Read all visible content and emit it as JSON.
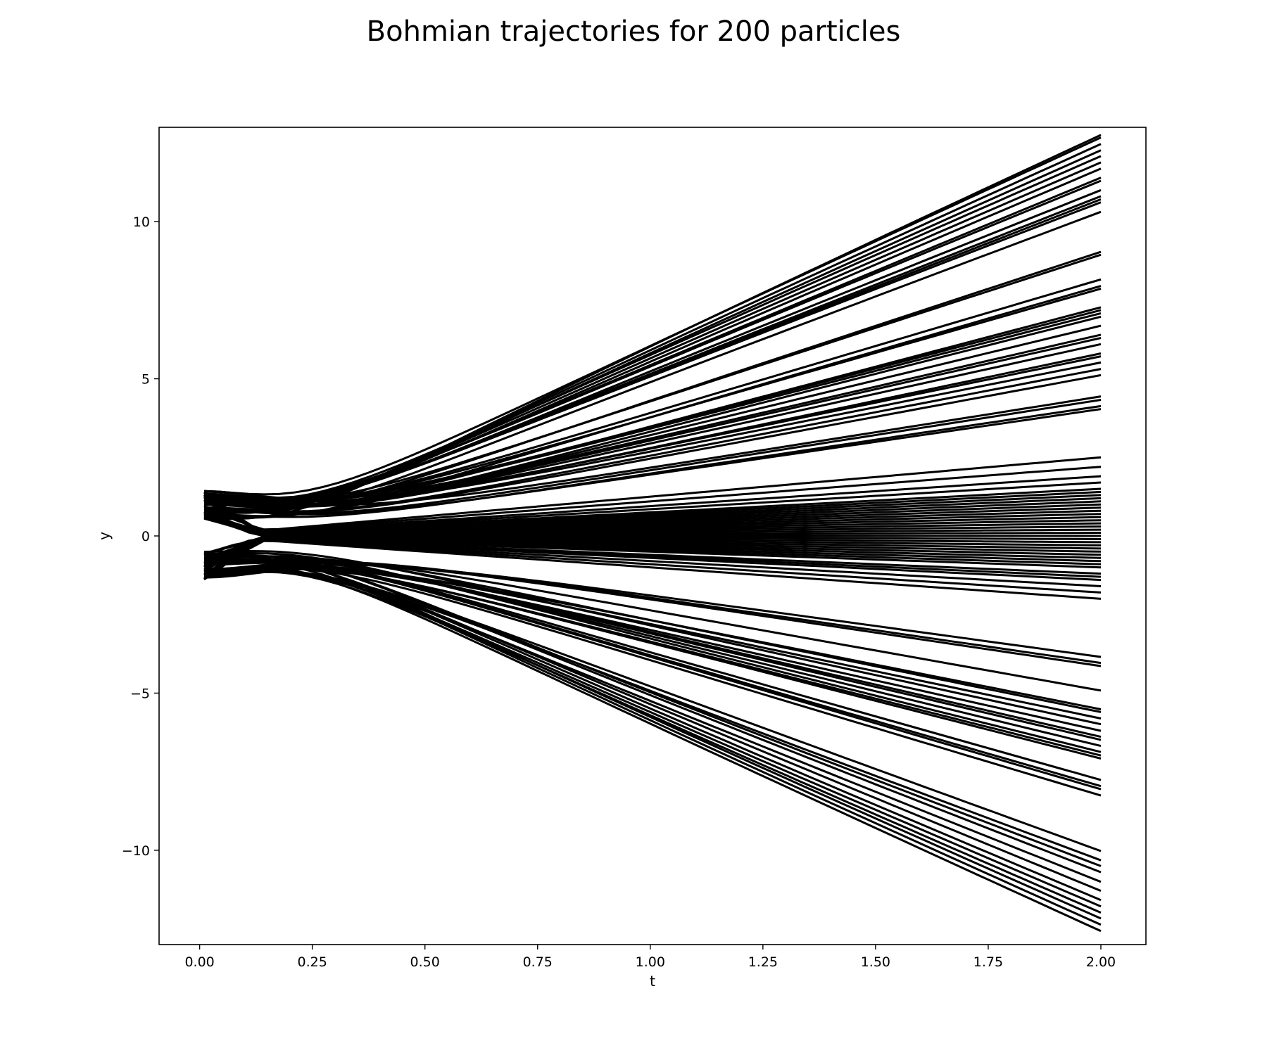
{
  "chart_data": {
    "type": "line",
    "title": "Bohmian trajectories for 200 particles",
    "xlabel": "t",
    "ylabel": "y",
    "xlim": [
      -0.09,
      2.1
    ],
    "ylim": [
      -13,
      13
    ],
    "x_ticks": [
      0.0,
      0.25,
      0.5,
      0.75,
      1.0,
      1.25,
      1.5,
      1.75,
      2.0
    ],
    "x_tick_labels": [
      "0.00",
      "0.25",
      "0.50",
      "0.75",
      "1.00",
      "1.25",
      "1.50",
      "1.75",
      "2.00"
    ],
    "y_ticks": [
      -10,
      -5,
      0,
      5,
      10
    ],
    "y_tick_labels": [
      "−10",
      "−5",
      "0",
      "5",
      "10"
    ],
    "grid": false,
    "legend": "none",
    "line_color": "#000000",
    "t_range": [
      0.01,
      2.0
    ],
    "n_particles": 200,
    "initial_y_range": [
      -1.4,
      1.5
    ],
    "final_y_representative": [
      13.0,
      12.9,
      12.7,
      12.5,
      12.3,
      12.1,
      11.9,
      11.6,
      11.5,
      11.2,
      11.0,
      10.9,
      10.8,
      10.5,
      9.2,
      9.1,
      8.3,
      8.1,
      8.0,
      7.4,
      7.3,
      7.2,
      7.1,
      6.8,
      6.5,
      6.4,
      6.2,
      5.9,
      5.8,
      5.6,
      5.4,
      5.2,
      4.5,
      4.4,
      4.2,
      4.1,
      2.5,
      2.2,
      1.9,
      1.7,
      1.5,
      1.4,
      1.3,
      1.2,
      1.1,
      1.0,
      0.9,
      0.8,
      0.7,
      0.6,
      0.5,
      0.4,
      0.3,
      0.2,
      0.1,
      0.0,
      -0.1,
      -0.2,
      -0.3,
      -0.4,
      -0.5,
      -0.6,
      -0.7,
      -0.8,
      -0.9,
      -1.0,
      -1.2,
      -1.3,
      -1.4,
      -1.6,
      -1.8,
      -2.0,
      -3.9,
      -4.1,
      -4.2,
      -5.0,
      -5.6,
      -5.7,
      -5.9,
      -6.1,
      -6.3,
      -6.5,
      -6.6,
      -6.8,
      -7.0,
      -7.1,
      -7.2,
      -7.9,
      -8.1,
      -8.2,
      -8.4,
      -10.2,
      -10.5,
      -10.7,
      -10.9,
      -11.2,
      -11.5,
      -11.8,
      -12.0,
      -12.2,
      -12.4,
      -12.6,
      -12.8
    ]
  }
}
